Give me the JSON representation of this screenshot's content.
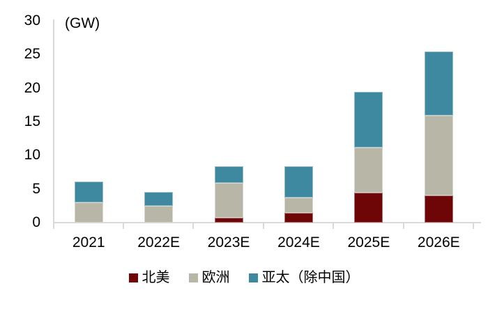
{
  "chart_data": {
    "type": "bar",
    "stacked": true,
    "title": "",
    "xlabel": "",
    "ylabel": "(GW)",
    "categories": [
      "2021",
      "2022E",
      "2023E",
      "2024E",
      "2025E",
      "2026E"
    ],
    "series": [
      {
        "name": "北美",
        "color": "#6e0608",
        "values": [
          0,
          0,
          0.7,
          1.4,
          4.4,
          4.0
        ]
      },
      {
        "name": "欧洲",
        "color": "#b8b6a6",
        "values": [
          3.0,
          2.5,
          5.2,
          2.3,
          6.8,
          11.9
        ]
      },
      {
        "name": "亚太（除中国）",
        "color": "#3f89a0",
        "values": [
          3.1,
          2.1,
          2.5,
          4.7,
          8.3,
          9.5
        ]
      }
    ],
    "totals": [
      6.1,
      4.6,
      8.4,
      8.4,
      19.5,
      25.4
    ],
    "ylim": [
      0,
      30
    ],
    "ytick_step": 5,
    "grid": false,
    "legend_position": "bottom",
    "axis_color": "#d9d9d9",
    "text_color": "#000000"
  }
}
